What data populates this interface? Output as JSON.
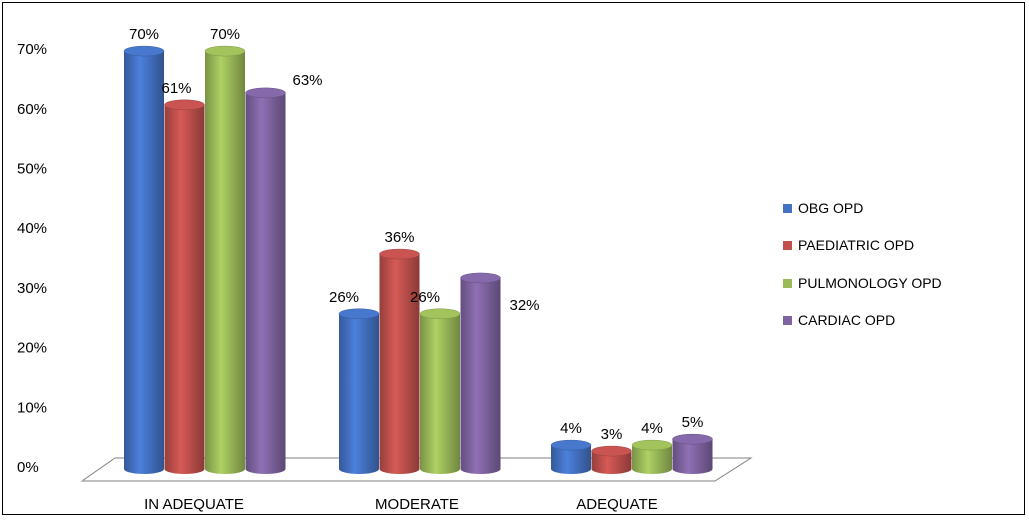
{
  "chart_data": {
    "type": "bar",
    "title": "",
    "xlabel": "",
    "ylabel": "",
    "categories": [
      "IN ADEQUATE",
      "MODERATE",
      "ADEQUATE"
    ],
    "series": [
      {
        "name": "OBG OPD",
        "values": [
          70,
          26,
          4
        ],
        "labels": [
          "70%",
          "26%",
          "4%"
        ],
        "color": "#4472C4"
      },
      {
        "name": "PAEDIATRIC OPD",
        "values": [
          61,
          36,
          3
        ],
        "labels": [
          "61%",
          "36%",
          "3%"
        ],
        "color": "#C0504D"
      },
      {
        "name": "PULMONOLOGY OPD",
        "values": [
          70,
          26,
          4
        ],
        "labels": [
          "70%",
          "26%",
          "4%"
        ],
        "color": "#9BBB59"
      },
      {
        "name": "CARDIAC OPD",
        "values": [
          63,
          32,
          5
        ],
        "labels": [
          "63%",
          "32%",
          "5%"
        ],
        "color": "#8064A2"
      }
    ],
    "yticks": [
      "0%",
      "10%",
      "20%",
      "30%",
      "40%",
      "50%",
      "60%",
      "70%"
    ],
    "ylim": [
      0,
      70
    ],
    "grid": false,
    "legend_position": "right",
    "style": "3d-cylinder"
  }
}
